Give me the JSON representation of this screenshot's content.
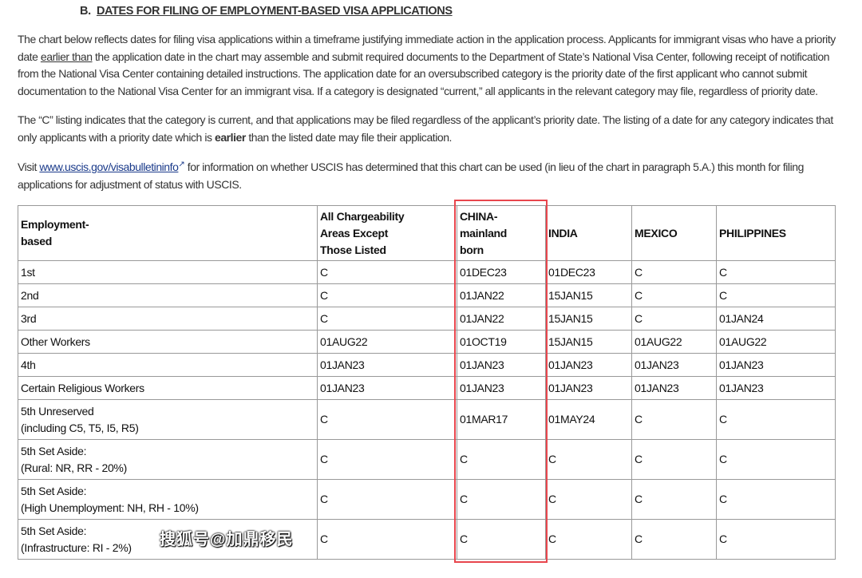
{
  "heading": {
    "prefix": "B.",
    "title": "DATES FOR FILING OF EMPLOYMENT-BASED VISA APPLICATIONS"
  },
  "para1": {
    "a": "The chart below reflects dates for filing visa applications within a timeframe justifying immediate action in the application process. Applicants for immigrant visas who have a priority date ",
    "u": "earlier than",
    "b": " the application date in the chart may assemble and submit required documents to the Department of State’s National Visa Center, following receipt of notification from the National Visa Center containing detailed instructions. The application date for an oversubscribed category is the priority date of the first applicant who cannot submit documentation to the National Visa Center for an immigrant visa. If a category is designated “current,” all applicants in the relevant category may file, regardless of priority date."
  },
  "para2": {
    "a": "The “C” listing indicates that the category is current, and that applications may be filed regardless of the applicant’s priority date. The listing of a date for any category indicates that only applicants with a priority date which is ",
    "b": "earlier",
    "c": " than the listed date may file their application."
  },
  "para3": {
    "a": "Visit ",
    "link": "www.uscis.gov/visabulletininfo",
    "b": " for information on whether USCIS has determined that this chart can be used (in lieu of the chart in paragraph 5.A.) this month for filing applications for adjustment of status with USCIS."
  },
  "table": {
    "headers": [
      [
        "Employment-",
        "based"
      ],
      [
        "All Chargeability",
        "Areas Except",
        "Those Listed"
      ],
      [
        "CHINA-",
        "mainland",
        "born"
      ],
      [
        "INDIA"
      ],
      [
        "MEXICO"
      ],
      [
        "PHILIPPINES"
      ]
    ],
    "rows": [
      [
        [
          "1st"
        ],
        "C",
        "01DEC23",
        "01DEC23",
        "C",
        "C"
      ],
      [
        [
          "2nd"
        ],
        "C",
        "01JAN22",
        "15JAN15",
        "C",
        "C"
      ],
      [
        [
          "3rd"
        ],
        "C",
        "01JAN22",
        "15JAN15",
        "C",
        "01JAN24"
      ],
      [
        [
          "Other Workers"
        ],
        "01AUG22",
        "01OCT19",
        "15JAN15",
        "01AUG22",
        "01AUG22"
      ],
      [
        [
          "4th"
        ],
        "01JAN23",
        "01JAN23",
        "01JAN23",
        "01JAN23",
        "01JAN23"
      ],
      [
        [
          "Certain Religious Workers"
        ],
        "01JAN23",
        "01JAN23",
        "01JAN23",
        "01JAN23",
        "01JAN23"
      ],
      [
        [
          "5th Unreserved",
          "(including C5, T5, I5, R5)"
        ],
        "C",
        "01MAR17",
        "01MAY24",
        "C",
        "C"
      ],
      [
        [
          "5th Set Aside:",
          "(Rural: NR, RR - 20%)"
        ],
        "C",
        "C",
        "C",
        "C",
        "C"
      ],
      [
        [
          "5th Set Aside:",
          "(High Unemployment: NH, RH - 10%)"
        ],
        "C",
        "C",
        "C",
        "C",
        "C"
      ],
      [
        [
          "5th Set Aside:",
          "(Infrastructure: RI - 2%)"
        ],
        "C",
        "C",
        "C",
        "C",
        "C"
      ]
    ]
  },
  "highlight_color": "#e8464d",
  "watermark": "搜狐号@加鼎移民"
}
